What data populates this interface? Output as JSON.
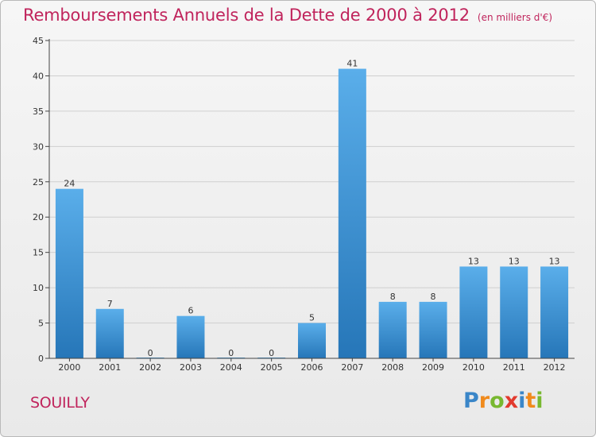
{
  "title": "Remboursements Annuels de la Dette de 2000 à 2012",
  "unit_label": "(en milliers d'€)",
  "commune": "SOUILLY",
  "logo": {
    "text": "Proxiti",
    "letters": [
      {
        "ch": "P",
        "color": "#3a86c8"
      },
      {
        "ch": "r",
        "color": "#f08a1c"
      },
      {
        "ch": "o",
        "color": "#78b830"
      },
      {
        "ch": "x",
        "color": "#e23a2e"
      },
      {
        "ch": "i",
        "color": "#3a86c8"
      },
      {
        "ch": "t",
        "color": "#f08a1c"
      },
      {
        "ch": "i",
        "color": "#78b830"
      }
    ]
  },
  "colors": {
    "title": "#c0245c",
    "bar_top": "#5aaeea",
    "bar_bottom": "#2676b8",
    "grid": "#cfcfcf",
    "axis": "#444444"
  },
  "chart_data": {
    "type": "bar",
    "categories": [
      "2000",
      "2001",
      "2002",
      "2003",
      "2004",
      "2005",
      "2006",
      "2007",
      "2008",
      "2009",
      "2010",
      "2011",
      "2012"
    ],
    "values": [
      24,
      7,
      0,
      6,
      0,
      0,
      5,
      41,
      8,
      8,
      13,
      13,
      13
    ],
    "data_labels": [
      "24",
      "7",
      "0",
      "6",
      "0",
      "0",
      "5",
      "41",
      "8",
      "8",
      "13",
      "13",
      "13"
    ],
    "y_ticks": [
      "0",
      "5",
      "10",
      "15",
      "20",
      "25",
      "30",
      "35",
      "40",
      "45"
    ],
    "ylim": [
      0,
      45
    ],
    "grid": true,
    "legend": "none"
  }
}
